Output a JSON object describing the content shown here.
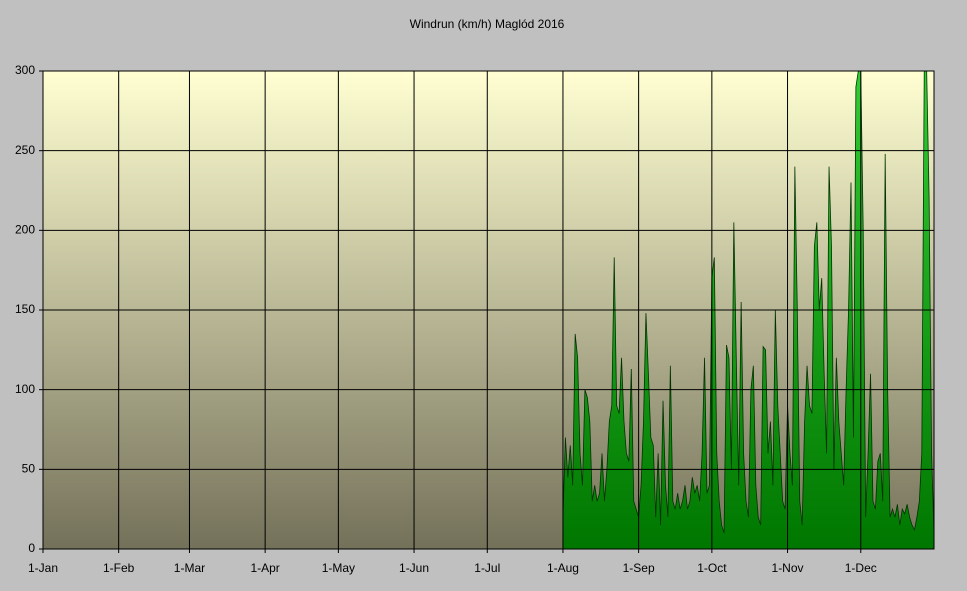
{
  "chart_data": {
    "type": "area",
    "title": "Windrun (km/h) Maglód 2016",
    "xlim": [
      0,
      365
    ],
    "ylim": [
      0,
      300
    ],
    "xticks": [
      {
        "value": 0,
        "label": "1-Jan"
      },
      {
        "value": 31,
        "label": "1-Feb"
      },
      {
        "value": 60,
        "label": "1-Mar"
      },
      {
        "value": 91,
        "label": "1-Apr"
      },
      {
        "value": 121,
        "label": "1-May"
      },
      {
        "value": 152,
        "label": "1-Jun"
      },
      {
        "value": 182,
        "label": "1-Jul"
      },
      {
        "value": 213,
        "label": "1-Aug"
      },
      {
        "value": 244,
        "label": "1-Sep"
      },
      {
        "value": 274,
        "label": "1-Oct"
      },
      {
        "value": 305,
        "label": "1-Nov"
      },
      {
        "value": 335,
        "label": "1-Dec"
      }
    ],
    "yticks": [
      0,
      50,
      100,
      150,
      200,
      250,
      300
    ],
    "grid": true,
    "series": [
      {
        "color": "#009900",
        "x": [
          213,
          214,
          215,
          216,
          217,
          218,
          219,
          220,
          221,
          222,
          223,
          224,
          225,
          226,
          227,
          228,
          229,
          230,
          231,
          232,
          233,
          234,
          235,
          236,
          237,
          238,
          239,
          240,
          241,
          242,
          243,
          244,
          245,
          246,
          247,
          248,
          249,
          250,
          251,
          252,
          253,
          254,
          255,
          256,
          257,
          258,
          259,
          260,
          261,
          262,
          263,
          264,
          265,
          266,
          267,
          268,
          269,
          270,
          271,
          272,
          273,
          274,
          275,
          276,
          277,
          278,
          279,
          280,
          281,
          282,
          283,
          284,
          285,
          286,
          287,
          288,
          289,
          290,
          291,
          292,
          293,
          294,
          295,
          296,
          297,
          298,
          299,
          300,
          301,
          302,
          303,
          304,
          305,
          306,
          307,
          308,
          309,
          310,
          311,
          312,
          313,
          314,
          315,
          316,
          317,
          318,
          319,
          320,
          321,
          322,
          323,
          324,
          325,
          326,
          327,
          328,
          329,
          330,
          331,
          332,
          333,
          334,
          335,
          336,
          337,
          338,
          339,
          340,
          341,
          342,
          343,
          344,
          345,
          346,
          347,
          348,
          349,
          350,
          351,
          352,
          353,
          354,
          355,
          356,
          357,
          358,
          359,
          360,
          361,
          362,
          363,
          364,
          365
        ],
        "values": [
          20,
          70,
          45,
          65,
          40,
          135,
          120,
          60,
          40,
          100,
          95,
          80,
          30,
          40,
          30,
          35,
          60,
          30,
          50,
          80,
          90,
          183,
          90,
          85,
          120,
          80,
          60,
          55,
          113,
          30,
          25,
          20,
          40,
          80,
          148,
          110,
          70,
          65,
          20,
          60,
          15,
          93,
          40,
          20,
          115,
          30,
          25,
          35,
          25,
          30,
          40,
          25,
          30,
          45,
          35,
          40,
          30,
          60,
          120,
          35,
          40,
          170,
          183,
          60,
          30,
          15,
          10,
          128,
          120,
          50,
          205,
          120,
          40,
          155,
          60,
          30,
          20,
          100,
          115,
          40,
          20,
          15,
          127,
          125,
          60,
          80,
          40,
          150,
          90,
          60,
          30,
          25,
          90,
          60,
          40,
          240,
          150,
          30,
          15,
          80,
          115,
          90,
          85,
          190,
          205,
          150,
          170,
          110,
          60,
          240,
          190,
          50,
          120,
          80,
          60,
          40,
          100,
          150,
          230,
          70,
          290,
          300,
          300,
          200,
          20,
          60,
          110,
          30,
          25,
          55,
          60,
          30,
          248,
          100,
          20,
          25,
          20,
          28,
          15,
          25,
          22,
          28,
          20,
          15,
          12,
          20,
          30,
          60,
          300,
          300,
          220,
          60,
          10
        ]
      }
    ]
  }
}
